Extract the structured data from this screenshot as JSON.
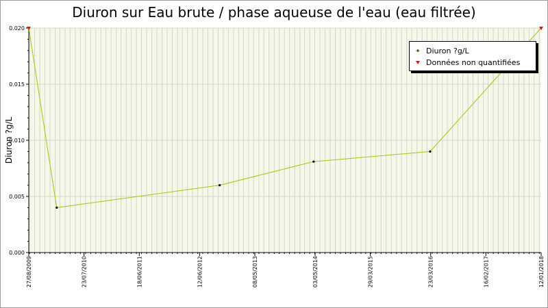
{
  "chart_data": {
    "type": "line",
    "title": "Diuron sur Eau brute / phase aqueuse de l'eau (eau filtrée)",
    "ylabel": "Diuron ?g/L",
    "xlabel": "",
    "ylim": [
      0,
      0.02
    ],
    "y_ticks": [
      "0.000",
      "0.005",
      "0.010",
      "0.015",
      "0.020"
    ],
    "x_range": [
      "2009-08-27",
      "2018-01-12"
    ],
    "x_ticks": [
      "27/08/2009",
      "23/07/2010",
      "18/06/2011",
      "12/06/2012",
      "08/05/2013",
      "03/05/2014",
      "29/03/2015",
      "23/03/2016",
      "16/02/2017",
      "12/01/2018"
    ],
    "grid": true,
    "legend_position": "top-right",
    "series": [
      {
        "name": "Diuron ?g/L",
        "color": "#99cc00",
        "marker_color": "#000000",
        "points": [
          {
            "x": "2010-02-10",
            "y": 0.004
          },
          {
            "x": "2012-10-10",
            "y": 0.006
          },
          {
            "x": "2014-04-24",
            "y": 0.0081
          },
          {
            "x": "2016-03-20",
            "y": 0.009
          }
        ]
      },
      {
        "name": "Données non quantifiées",
        "color": "#ff0000",
        "points": [
          {
            "x": "2009-08-27",
            "y": 0.02
          },
          {
            "x": "2018-01-12",
            "y": 0.02
          }
        ]
      }
    ],
    "line_sequence": [
      {
        "x": "2009-08-27",
        "y": 0.02
      },
      {
        "x": "2010-02-10",
        "y": 0.004
      },
      {
        "x": "2012-10-10",
        "y": 0.006
      },
      {
        "x": "2014-04-24",
        "y": 0.0081
      },
      {
        "x": "2016-03-20",
        "y": 0.009
      },
      {
        "x": "2018-01-12",
        "y": 0.02
      }
    ],
    "colors": {
      "plot_background": "#f5f7e9",
      "grid": "#d6d6c8"
    }
  }
}
